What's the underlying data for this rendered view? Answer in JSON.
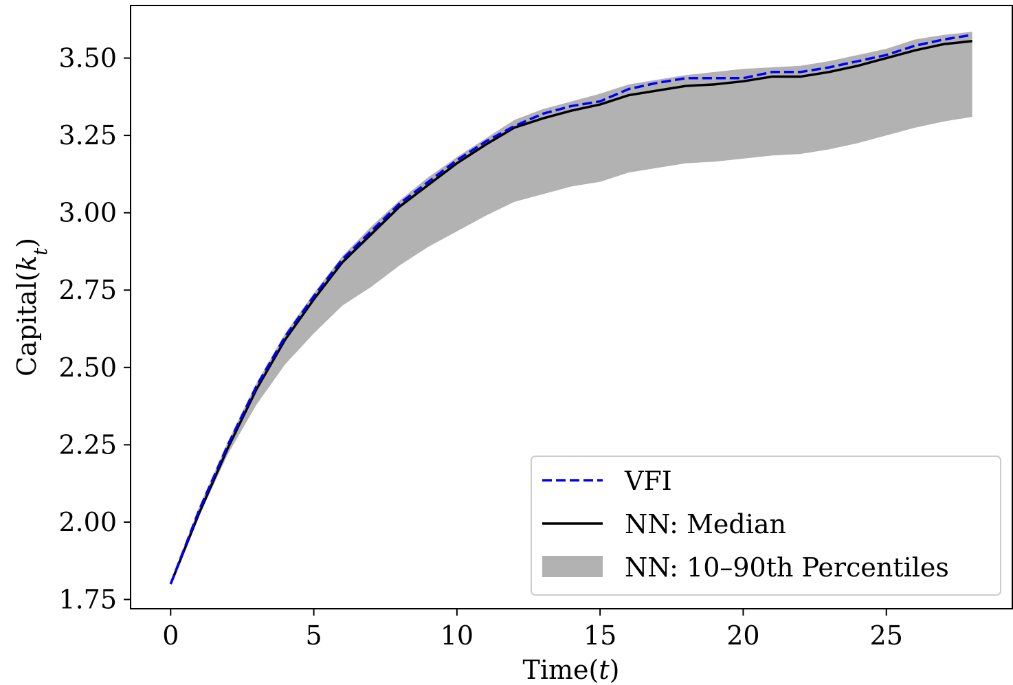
{
  "chart_data": {
    "type": "line",
    "title": "",
    "xlabel": "Time(t)",
    "ylabel": "Capital(k_t)",
    "xlim": [
      -1.4,
      29.4
    ],
    "ylim": [
      1.72,
      3.67
    ],
    "xticks": [
      0,
      5,
      10,
      15,
      20,
      25
    ],
    "xtick_labels": [
      "0",
      "5",
      "10",
      "15",
      "20",
      "25"
    ],
    "yticks": [
      1.75,
      2.0,
      2.25,
      2.5,
      2.75,
      3.0,
      3.25,
      3.5
    ],
    "ytick_labels": [
      "1.75",
      "2.00",
      "2.25",
      "2.50",
      "2.75",
      "3.00",
      "3.25",
      "3.50"
    ],
    "grid": false,
    "legend_position": "bottom-right",
    "legend": [
      "VFI",
      "NN: Median",
      "NN: 10–90th Percentiles"
    ],
    "x": [
      0,
      1,
      2,
      3,
      4,
      5,
      6,
      7,
      8,
      9,
      10,
      11,
      12,
      13,
      14,
      15,
      16,
      17,
      18,
      19,
      20,
      21,
      22,
      23,
      24,
      25,
      26,
      27,
      28
    ],
    "series": [
      {
        "name": "VFI",
        "style": "dashed",
        "color": "#0000ff",
        "values": [
          1.8,
          2.04,
          2.25,
          2.44,
          2.6,
          2.73,
          2.85,
          2.94,
          3.03,
          3.1,
          3.17,
          3.23,
          3.28,
          3.32,
          3.345,
          3.36,
          3.4,
          3.42,
          3.435,
          3.435,
          3.435,
          3.455,
          3.455,
          3.47,
          3.49,
          3.51,
          3.54,
          3.56,
          3.575
        ]
      },
      {
        "name": "NN: Median",
        "style": "solid",
        "color": "#000000",
        "values": [
          1.8,
          2.03,
          2.24,
          2.43,
          2.59,
          2.72,
          2.84,
          2.93,
          3.02,
          3.09,
          3.16,
          3.22,
          3.275,
          3.305,
          3.33,
          3.35,
          3.38,
          3.395,
          3.41,
          3.415,
          3.425,
          3.44,
          3.44,
          3.455,
          3.475,
          3.5,
          3.525,
          3.545,
          3.555
        ]
      }
    ],
    "band": {
      "name": "NN: 10–90th Percentiles",
      "color": "#b2b2b2",
      "lower": [
        1.8,
        2.02,
        2.22,
        2.38,
        2.51,
        2.61,
        2.7,
        2.76,
        2.83,
        2.89,
        2.94,
        2.99,
        3.035,
        3.06,
        3.085,
        3.1,
        3.13,
        3.145,
        3.16,
        3.165,
        3.175,
        3.185,
        3.19,
        3.205,
        3.225,
        3.25,
        3.275,
        3.295,
        3.31
      ],
      "upper": [
        1.81,
        2.05,
        2.26,
        2.45,
        2.61,
        2.74,
        2.86,
        2.955,
        3.04,
        3.115,
        3.18,
        3.24,
        3.3,
        3.335,
        3.36,
        3.385,
        3.415,
        3.43,
        3.445,
        3.455,
        3.465,
        3.47,
        3.475,
        3.49,
        3.51,
        3.53,
        3.56,
        3.575,
        3.585
      ]
    }
  }
}
